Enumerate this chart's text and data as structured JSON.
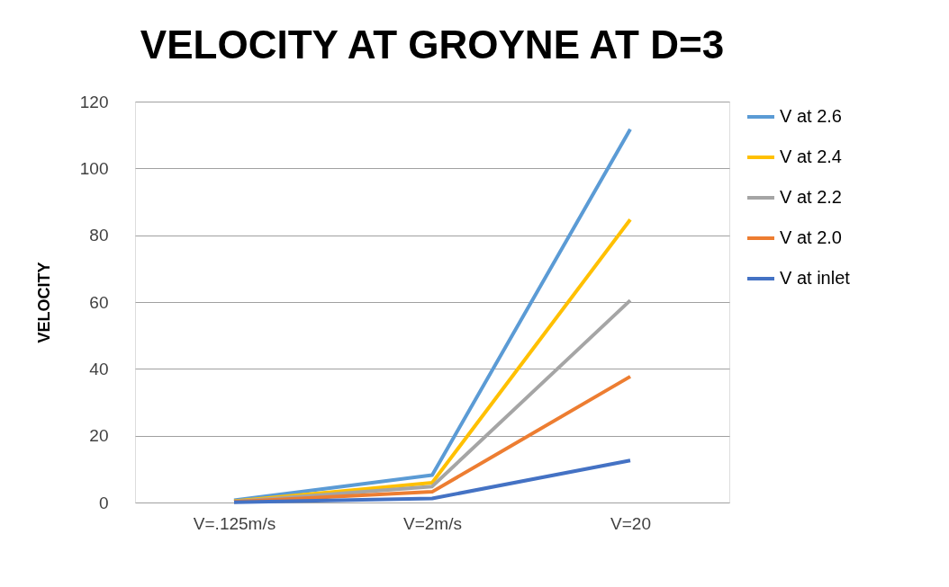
{
  "chart_data": {
    "type": "line",
    "title": "VELOCITY AT GROYNE AT D=3",
    "ylabel": "VELOCITY",
    "categories": [
      "V=.125m/s",
      "V=2m/s",
      "V=20"
    ],
    "series": [
      {
        "name": "V at 2.6",
        "color": "#5b9bd5",
        "values": [
          0.7,
          8.2,
          111.7
        ]
      },
      {
        "name": "V at 2.4",
        "color": "#ffc000",
        "values": [
          0.4,
          5.9,
          84.7
        ]
      },
      {
        "name": "V  at 2.2",
        "color": "#a5a5a5",
        "values": [
          0.3,
          4.8,
          60.5
        ]
      },
      {
        "name": "V at 2.0",
        "color": "#ed7d31",
        "values": [
          0.2,
          3.2,
          37.7
        ]
      },
      {
        "name": "V at inlet",
        "color": "#4472c4",
        "values": [
          0.1,
          1.2,
          12.6
        ]
      }
    ],
    "ylim": [
      0,
      120
    ],
    "yticks": [
      0,
      20,
      40,
      60,
      80,
      100,
      120
    ],
    "grid": "y",
    "legend": "right",
    "marker": "none",
    "line_style": "solid"
  }
}
